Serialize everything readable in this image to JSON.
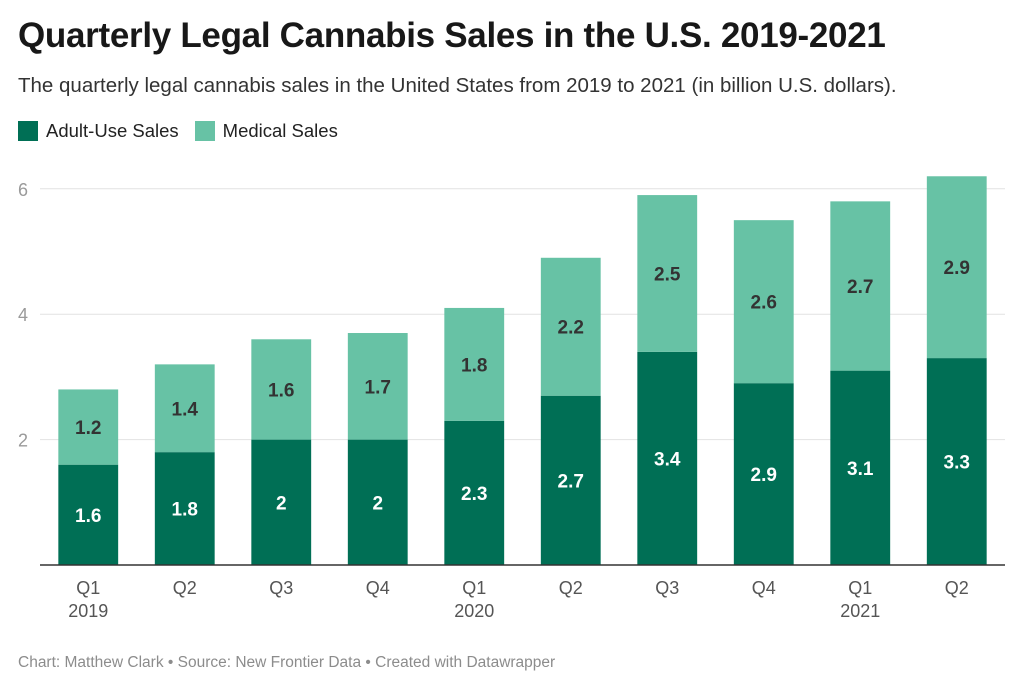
{
  "title": "Quarterly Legal Cannabis Sales in the U.S. 2019-2021",
  "subtitle": "The quarterly legal cannabis sales in the United States from 2019 to 2021 (in billion U.S. dollars).",
  "footer": "Chart: Matthew Clark • Source: New Frontier Data • Created with Datawrapper",
  "chart_data": {
    "type": "bar",
    "stacked": true,
    "categories": [
      "Q1 2019",
      "Q2 2019",
      "Q3 2019",
      "Q4 2019",
      "Q1 2020",
      "Q2 2020",
      "Q3 2020",
      "Q4 2020",
      "Q1 2021",
      "Q2 2021"
    ],
    "tick_labels": [
      {
        "quarter": "Q1",
        "year": "2019"
      },
      {
        "quarter": "Q2",
        "year": ""
      },
      {
        "quarter": "Q3",
        "year": ""
      },
      {
        "quarter": "Q4",
        "year": ""
      },
      {
        "quarter": "Q1",
        "year": "2020"
      },
      {
        "quarter": "Q2",
        "year": ""
      },
      {
        "quarter": "Q3",
        "year": ""
      },
      {
        "quarter": "Q4",
        "year": ""
      },
      {
        "quarter": "Q1",
        "year": "2021"
      },
      {
        "quarter": "Q2",
        "year": ""
      }
    ],
    "series": [
      {
        "name": "Adult-Use Sales",
        "color": "#006f55",
        "label_color": "#ffffff",
        "values": [
          1.6,
          1.8,
          2,
          2,
          2.3,
          2.7,
          3.4,
          2.9,
          3.1,
          3.3
        ]
      },
      {
        "name": "Medical Sales",
        "color": "#67c2a5",
        "label_color": "#333333",
        "values": [
          1.2,
          1.4,
          1.6,
          1.7,
          1.8,
          2.2,
          2.5,
          2.6,
          2.7,
          2.9
        ]
      }
    ],
    "ylim": [
      0,
      6.3
    ],
    "yticks": [
      2,
      4,
      6
    ],
    "xlabel": "",
    "ylabel": "",
    "grid": true,
    "legend_position": "top-left"
  }
}
